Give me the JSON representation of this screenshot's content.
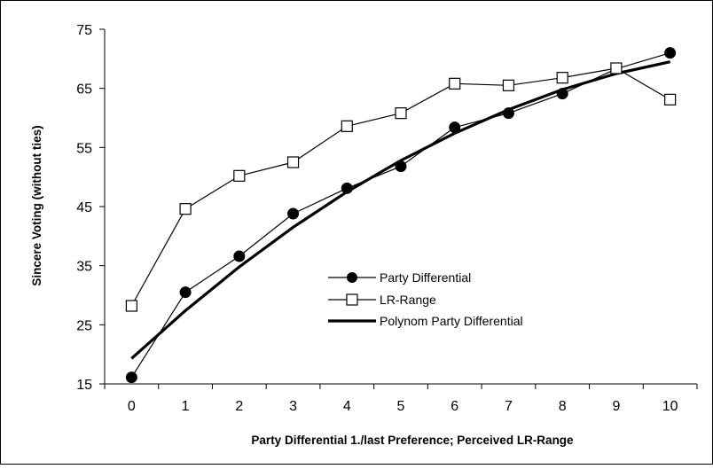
{
  "chart_data": {
    "type": "line",
    "title": "",
    "xlabel": "Party Differential 1./last Preference; Perceived LR-Range",
    "ylabel": "Sincere Voting (without ties)",
    "x": [
      0,
      1,
      2,
      3,
      4,
      5,
      6,
      7,
      8,
      9,
      10
    ],
    "xlim": [
      0,
      10
    ],
    "ylim": [
      15,
      75
    ],
    "yticks": [
      15,
      25,
      35,
      45,
      55,
      65,
      75
    ],
    "grid": false,
    "legend_position": "center-right",
    "series": [
      {
        "name": "Party Differential",
        "marker": "filled-circle",
        "values": [
          16.1,
          30.5,
          36.6,
          43.8,
          48.1,
          51.8,
          58.4,
          60.8,
          64.1,
          68.3,
          71.0
        ]
      },
      {
        "name": "LR-Range",
        "marker": "open-square",
        "values": [
          28.2,
          44.6,
          50.2,
          52.5,
          58.6,
          60.8,
          65.8,
          65.5,
          66.8,
          68.4,
          63.1
        ]
      },
      {
        "name": "Polynom Party Differential",
        "marker": "none",
        "values": [
          19.3,
          27.4,
          34.8,
          41.5,
          47.5,
          52.8,
          57.4,
          61.4,
          64.8,
          67.5,
          69.5
        ]
      }
    ]
  }
}
